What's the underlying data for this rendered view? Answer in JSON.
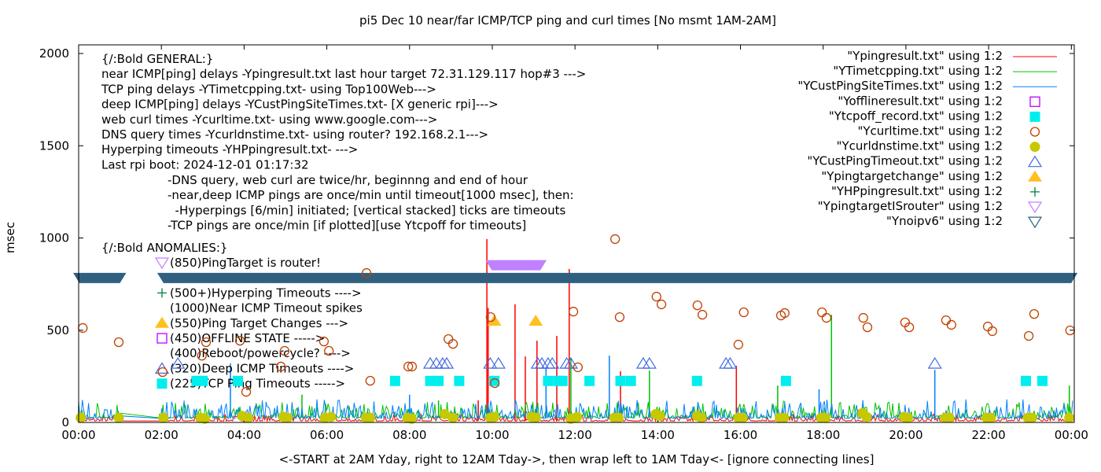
{
  "chart_data": {
    "type": "line",
    "title": "pi5 Dec 10  near/far ICMP/TCP ping and curl times [No msmt 1AM-2AM]",
    "xlabel": "<-START at 2AM Yday, right to 12AM Tday->, then wrap left to 1AM Tday<- [ignore connecting lines]",
    "ylabel": "msec",
    "xlim_hours": [
      0,
      24.07
    ],
    "ylim": [
      0,
      2047
    ],
    "x_ticks": [
      {
        "h": 0,
        "label": "00:00"
      },
      {
        "h": 2,
        "label": "02:00"
      },
      {
        "h": 4,
        "label": "04:00"
      },
      {
        "h": 6,
        "label": "06:00"
      },
      {
        "h": 8,
        "label": "08:00"
      },
      {
        "h": 10,
        "label": "10:00"
      },
      {
        "h": 12,
        "label": "12:00"
      },
      {
        "h": 14,
        "label": "14:00"
      },
      {
        "h": 16,
        "label": "16:00"
      },
      {
        "h": 18,
        "label": "18:00"
      },
      {
        "h": 20,
        "label": "20:00"
      },
      {
        "h": 22,
        "label": "22:00"
      },
      {
        "h": 24,
        "label": "00:00"
      }
    ],
    "y_ticks": [
      {
        "v": 0,
        "label": "0"
      },
      {
        "v": 500,
        "label": "500"
      },
      {
        "v": 1000,
        "label": "1000"
      },
      {
        "v": 1500,
        "label": "1500"
      },
      {
        "v": 2000,
        "label": "2000"
      }
    ],
    "legend_position": "top-right",
    "legend": [
      {
        "label": "\"Ypingresult.txt\" using 1:2",
        "style": "line",
        "color": "#ff0000"
      },
      {
        "label": "\"YTimetcpping.txt\" using 1:2",
        "style": "line",
        "color": "#00c000"
      },
      {
        "label": "\"YCustPingSiteTimes.txt\" using 1:2",
        "style": "line",
        "color": "#0080ff"
      },
      {
        "label": "\"Yofflineresult.txt\" using 1:2",
        "style": "square-open",
        "color": "#c000ff"
      },
      {
        "label": "\"Ytcpoff_record.txt\" using 1:2",
        "style": "square-filled",
        "color": "#00eeee"
      },
      {
        "label": "\"Ycurltime.txt\" using 1:2",
        "style": "circle-open",
        "color": "#c04000"
      },
      {
        "label": "\"Ycurldnstime.txt\" using 1:2",
        "style": "circle-filled",
        "color": "#c8c800"
      },
      {
        "label": "\"YCustPingTimeout.txt\" using 1:2",
        "style": "triangle-open",
        "color": "#4169e1"
      },
      {
        "label": "\"Ypingtargetchange\" using 1:2",
        "style": "triangle-filled",
        "color": "#ffc020"
      },
      {
        "label": "\"YHPpingresult.txt\" using 1:2",
        "style": "plus",
        "color": "#008040"
      },
      {
        "label": "\"YpingtargetISrouter\" using 1:2",
        "style": "invtriangle-open",
        "color": "#c080ff"
      },
      {
        "label": "\"Ynoipv6\" using 1:2",
        "style": "invtriangle-open",
        "color": "#306080"
      }
    ],
    "annotations_general": [
      "{/:Bold GENERAL:}",
      "near ICMP[ping] delays -Ypingresult.txt last hour target 72.31.129.117 hop#3 --->",
      "TCP ping delays -YTimetcpping.txt- using Top100Web--->",
      "deep ICMP[ping] delays -YCustPingSiteTimes.txt- [X generic rpi]--->",
      "web curl times -Ycurltime.txt- using www.google.com--->",
      "DNS query times -Ycurldnstime.txt- using router? 192.168.2.1--->",
      "Hyperping timeouts -YHPpingresult.txt- --->",
      "Last rpi boot: 2024-12-01 01:17:32"
    ],
    "annotations_notes": [
      "-DNS query, web curl are twice/hr, beginnng and end of hour",
      "-near,deep ICMP pings are once/min until timeout[1000 msec], then:",
      "  -Hyperpings [6/min] initiated; [vertical stacked] ticks are timeouts",
      "-TCP pings are once/min [if plotted][use Ytcpoff for timeouts]"
    ],
    "anomalies_title": "{/:Bold ANOMALIES:}",
    "anomalies": [
      {
        "text": "(850)PingTarget is router!",
        "marker": "invtriangle-open",
        "color": "#c080ff"
      },
      {
        "text": "",
        "marker": "none",
        "color": ""
      },
      {
        "text": "(500+)Hyperping Timeouts ---->",
        "marker": "plus",
        "color": "#008040"
      },
      {
        "text": "(1000)Near ICMP Timeout spikes",
        "marker": "none",
        "color": ""
      },
      {
        "text": "(550)Ping Target Changes --->",
        "marker": "triangle-filled",
        "color": "#ffc020"
      },
      {
        "text": "(450)OFFLINE STATE ----->",
        "marker": "square-open",
        "color": "#c000ff"
      },
      {
        "text": "(400)Reboot/powercycle? ---->",
        "marker": "none",
        "color": ""
      },
      {
        "text": "(320)Deep ICMP Timeouts ---->",
        "marker": "triangle-open",
        "color": "#4169e1"
      },
      {
        "text": "(225)TCP Ping Timeouts ----->",
        "marker": "square-filled",
        "color": "#00eeee"
      }
    ],
    "series": {
      "curl_times": [
        [
          0.1,
          512
        ],
        [
          0.97,
          435
        ],
        [
          2.03,
          273
        ],
        [
          2.98,
          362
        ],
        [
          3.08,
          435
        ],
        [
          3.9,
          443
        ],
        [
          4.05,
          166
        ],
        [
          4.89,
          303
        ],
        [
          4.98,
          388
        ],
        [
          5.93,
          439
        ],
        [
          6.05,
          388
        ],
        [
          6.96,
          810
        ],
        [
          7.05,
          226
        ],
        [
          7.97,
          303
        ],
        [
          8.06,
          303
        ],
        [
          8.94,
          452
        ],
        [
          9.05,
          426
        ],
        [
          9.96,
          571
        ],
        [
          10.06,
          213
        ],
        [
          11.96,
          601
        ],
        [
          12.07,
          299
        ],
        [
          12.97,
          994
        ],
        [
          13.08,
          571
        ],
        [
          13.97,
          682
        ],
        [
          14.09,
          640
        ],
        [
          14.96,
          635
        ],
        [
          15.08,
          584
        ],
        [
          15.95,
          422
        ],
        [
          16.08,
          597
        ],
        [
          16.98,
          580
        ],
        [
          17.07,
          593
        ],
        [
          17.97,
          597
        ],
        [
          18.08,
          567
        ],
        [
          18.97,
          567
        ],
        [
          19.07,
          516
        ],
        [
          19.98,
          542
        ],
        [
          20.08,
          516
        ],
        [
          20.97,
          554
        ],
        [
          21.1,
          529
        ],
        [
          21.98,
          520
        ],
        [
          22.09,
          495
        ],
        [
          22.97,
          469
        ],
        [
          23.1,
          588
        ],
        [
          23.97,
          499
        ]
      ],
      "dns_times": [
        [
          0.05,
          25
        ],
        [
          0.97,
          25
        ],
        [
          2.05,
          25
        ],
        [
          2.95,
          25
        ],
        [
          3.05,
          20
        ],
        [
          3.95,
          35
        ],
        [
          4.1,
          25
        ],
        [
          4.95,
          30
        ],
        [
          5.05,
          25
        ],
        [
          5.95,
          25
        ],
        [
          6.1,
          30
        ],
        [
          6.95,
          25
        ],
        [
          7.05,
          25
        ],
        [
          7.95,
          25
        ],
        [
          8.05,
          20
        ],
        [
          8.85,
          45
        ],
        [
          9.05,
          25
        ],
        [
          9.95,
          25
        ],
        [
          10.05,
          30
        ],
        [
          10.95,
          30
        ],
        [
          11.05,
          25
        ],
        [
          11.9,
          20
        ],
        [
          12.05,
          30
        ],
        [
          12.95,
          25
        ],
        [
          13.05,
          25
        ],
        [
          13.95,
          45
        ],
        [
          14.05,
          35
        ],
        [
          14.95,
          35
        ],
        [
          15.05,
          25
        ],
        [
          15.95,
          25
        ],
        [
          16.05,
          25
        ],
        [
          16.95,
          25
        ],
        [
          17.05,
          25
        ],
        [
          17.95,
          25
        ],
        [
          18.05,
          25
        ],
        [
          18.95,
          50
        ],
        [
          19.05,
          30
        ],
        [
          19.95,
          30
        ],
        [
          20.05,
          25
        ],
        [
          20.95,
          25
        ],
        [
          21.05,
          25
        ],
        [
          21.95,
          25
        ],
        [
          22.05,
          25
        ],
        [
          22.95,
          25
        ],
        [
          23.05,
          25
        ],
        [
          23.95,
          25
        ]
      ],
      "deep_icmp_timeouts": [
        [
          2.4,
          320
        ],
        [
          8.5,
          320
        ],
        [
          8.65,
          320
        ],
        [
          8.8,
          320
        ],
        [
          8.9,
          320
        ],
        [
          9.95,
          320
        ],
        [
          10.15,
          320
        ],
        [
          11.1,
          320
        ],
        [
          11.2,
          320
        ],
        [
          11.35,
          320
        ],
        [
          11.45,
          320
        ],
        [
          11.8,
          320
        ],
        [
          11.9,
          320
        ],
        [
          13.65,
          320
        ],
        [
          13.8,
          320
        ],
        [
          15.65,
          320
        ],
        [
          15.75,
          320
        ],
        [
          20.7,
          320
        ]
      ],
      "tcp_timeouts": [
        [
          2.85,
          225
        ],
        [
          3.0,
          225
        ],
        [
          3.85,
          225
        ],
        [
          7.65,
          225
        ],
        [
          8.5,
          225
        ],
        [
          8.7,
          225
        ],
        [
          9.2,
          225
        ],
        [
          10.05,
          225
        ],
        [
          11.35,
          225
        ],
        [
          11.6,
          225
        ],
        [
          11.7,
          225
        ],
        [
          12.35,
          225
        ],
        [
          13.1,
          225
        ],
        [
          13.35,
          225
        ],
        [
          14.95,
          225
        ],
        [
          17.1,
          225
        ],
        [
          22.9,
          225
        ],
        [
          23.3,
          225
        ]
      ],
      "ping_target_changes": [
        [
          10.05,
          550
        ],
        [
          11.05,
          550
        ]
      ],
      "router_target_ranges": [
        [
          9.95,
          11.2
        ]
      ],
      "noipv6_ranges": [
        [
          -0.15,
          1.15
        ],
        [
          1.9,
          24.15
        ]
      ],
      "near_icmp_spikes": [
        [
          9.87,
          994
        ],
        [
          9.66,
          120
        ],
        [
          10.55,
          640
        ],
        [
          10.8,
          358
        ],
        [
          11.08,
          443
        ],
        [
          11.56,
          469
        ],
        [
          11.86,
          832
        ],
        [
          13.1,
          277
        ],
        [
          15.9,
          307
        ],
        [
          9.9,
          620
        ]
      ],
      "tcp_spikes": [
        [
          0.0,
          90
        ],
        [
          13.8,
          281
        ],
        [
          18.2,
          584
        ],
        [
          16.9,
          200
        ],
        [
          11.9,
          350
        ],
        [
          23.95,
          200
        ],
        [
          8.7,
          120
        ],
        [
          5.4,
          150
        ]
      ],
      "deep_spikes": [
        [
          3.67,
          320
        ],
        [
          12.83,
          362
        ],
        [
          20.7,
          285
        ],
        [
          11.3,
          300
        ],
        [
          8.0,
          150
        ],
        [
          17.9,
          180
        ]
      ]
    }
  }
}
